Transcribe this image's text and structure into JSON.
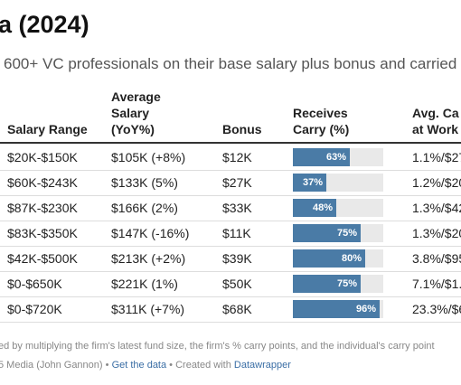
{
  "header": {
    "title": "a (2024)",
    "subtitle": "600+ VC professionals on their base salary plus bonus and carried"
  },
  "table": {
    "columns": [
      "Salary Range",
      "Average Salary (YoY%)",
      "Bonus",
      "Receives Carry (%)",
      "Avg. Ca at Work"
    ],
    "carry_max": 100,
    "rows": [
      [
        "$20K-$150K",
        "$105K (+8%)",
        "$12K",
        {
          "value": 63,
          "label": "63%"
        },
        "1.1%/$27"
      ],
      [
        "$60K-$243K",
        "$133K (5%)",
        "$27K",
        {
          "value": 37,
          "label": "37%"
        },
        "1.2%/$20"
      ],
      [
        "$87K-$230K",
        "$166K (2%)",
        "$33K",
        {
          "value": 48,
          "label": "48%"
        },
        "1.3%/$42"
      ],
      [
        "$83K-$350K",
        "$147K (-16%)",
        "$11K",
        {
          "value": 75,
          "label": "75%"
        },
        "1.3%/$20"
      ],
      [
        "$42K-$500K",
        "$213K (+2%)",
        "$39K",
        {
          "value": 80,
          "label": "80%"
        },
        "3.8%/$95"
      ],
      [
        "$0-$650K",
        "$221K (1%)",
        "$50K",
        {
          "value": 75,
          "label": "75%"
        },
        "7.1%/$1."
      ],
      [
        "$0-$720K",
        "$311K (+7%)",
        "$68K",
        {
          "value": 96,
          "label": "96%"
        },
        "23.3%/$6"
      ]
    ]
  },
  "footer": {
    "note": "ed by multiplying the firm's latest fund size, the firm's % carry points, and the individual's carry point",
    "source": "5 Media (John Gannon)",
    "sep1": "•",
    "link": "Get the data",
    "sep2": "•",
    "credit": "Created with",
    "tool": "Datawrapper"
  }
}
